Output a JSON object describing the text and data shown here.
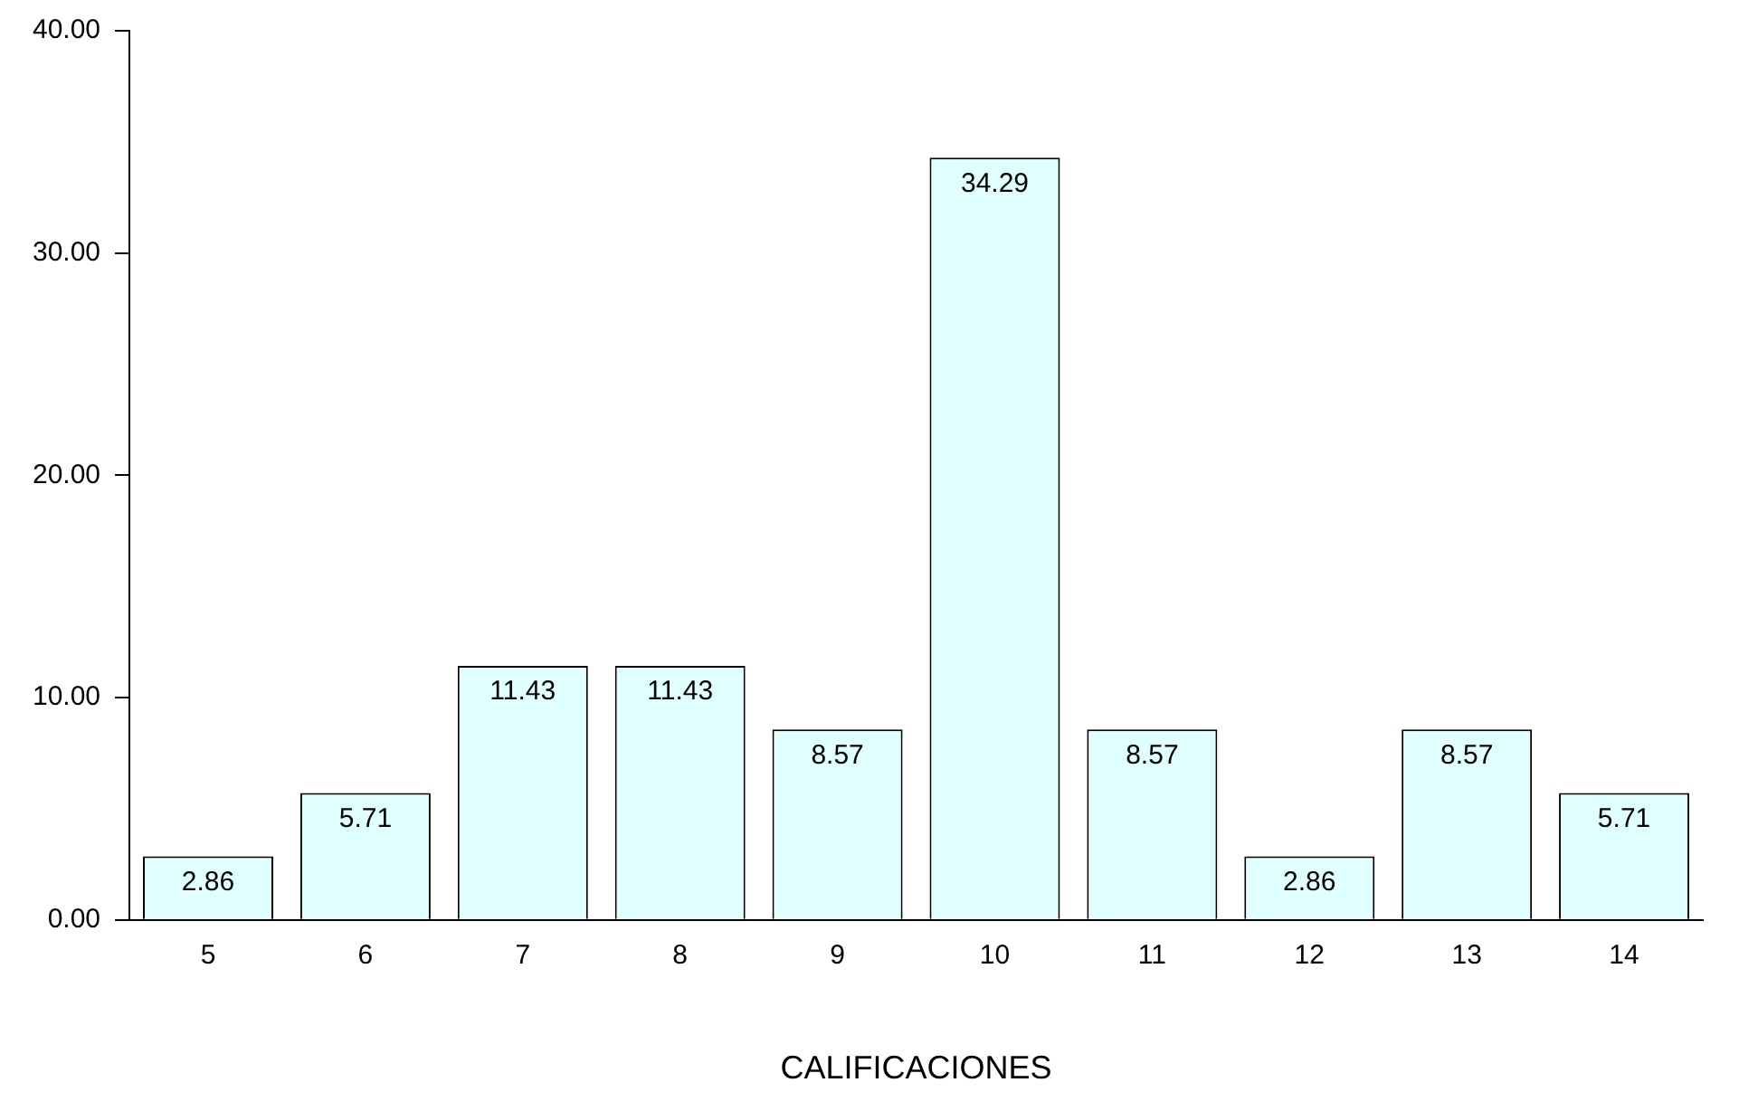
{
  "chart_data": {
    "type": "bar",
    "xlabel": "CALIFICACIONES",
    "categories": [
      "5",
      "6",
      "7",
      "8",
      "9",
      "10",
      "11",
      "12",
      "13",
      "14"
    ],
    "values": [
      2.86,
      5.71,
      11.43,
      11.43,
      8.57,
      34.29,
      8.57,
      2.86,
      8.57,
      5.71
    ],
    "color": "#e0ffff",
    "ylim": [
      0,
      40
    ],
    "yticks": [
      {
        "value": 0,
        "label": "0.00"
      },
      {
        "value": 10,
        "label": "10.00"
      },
      {
        "value": 20,
        "label": "20.00"
      },
      {
        "value": 30,
        "label": "30.00"
      },
      {
        "value": 40,
        "label": "40.00"
      }
    ],
    "grid": false,
    "legend": false,
    "data_labels": true
  }
}
